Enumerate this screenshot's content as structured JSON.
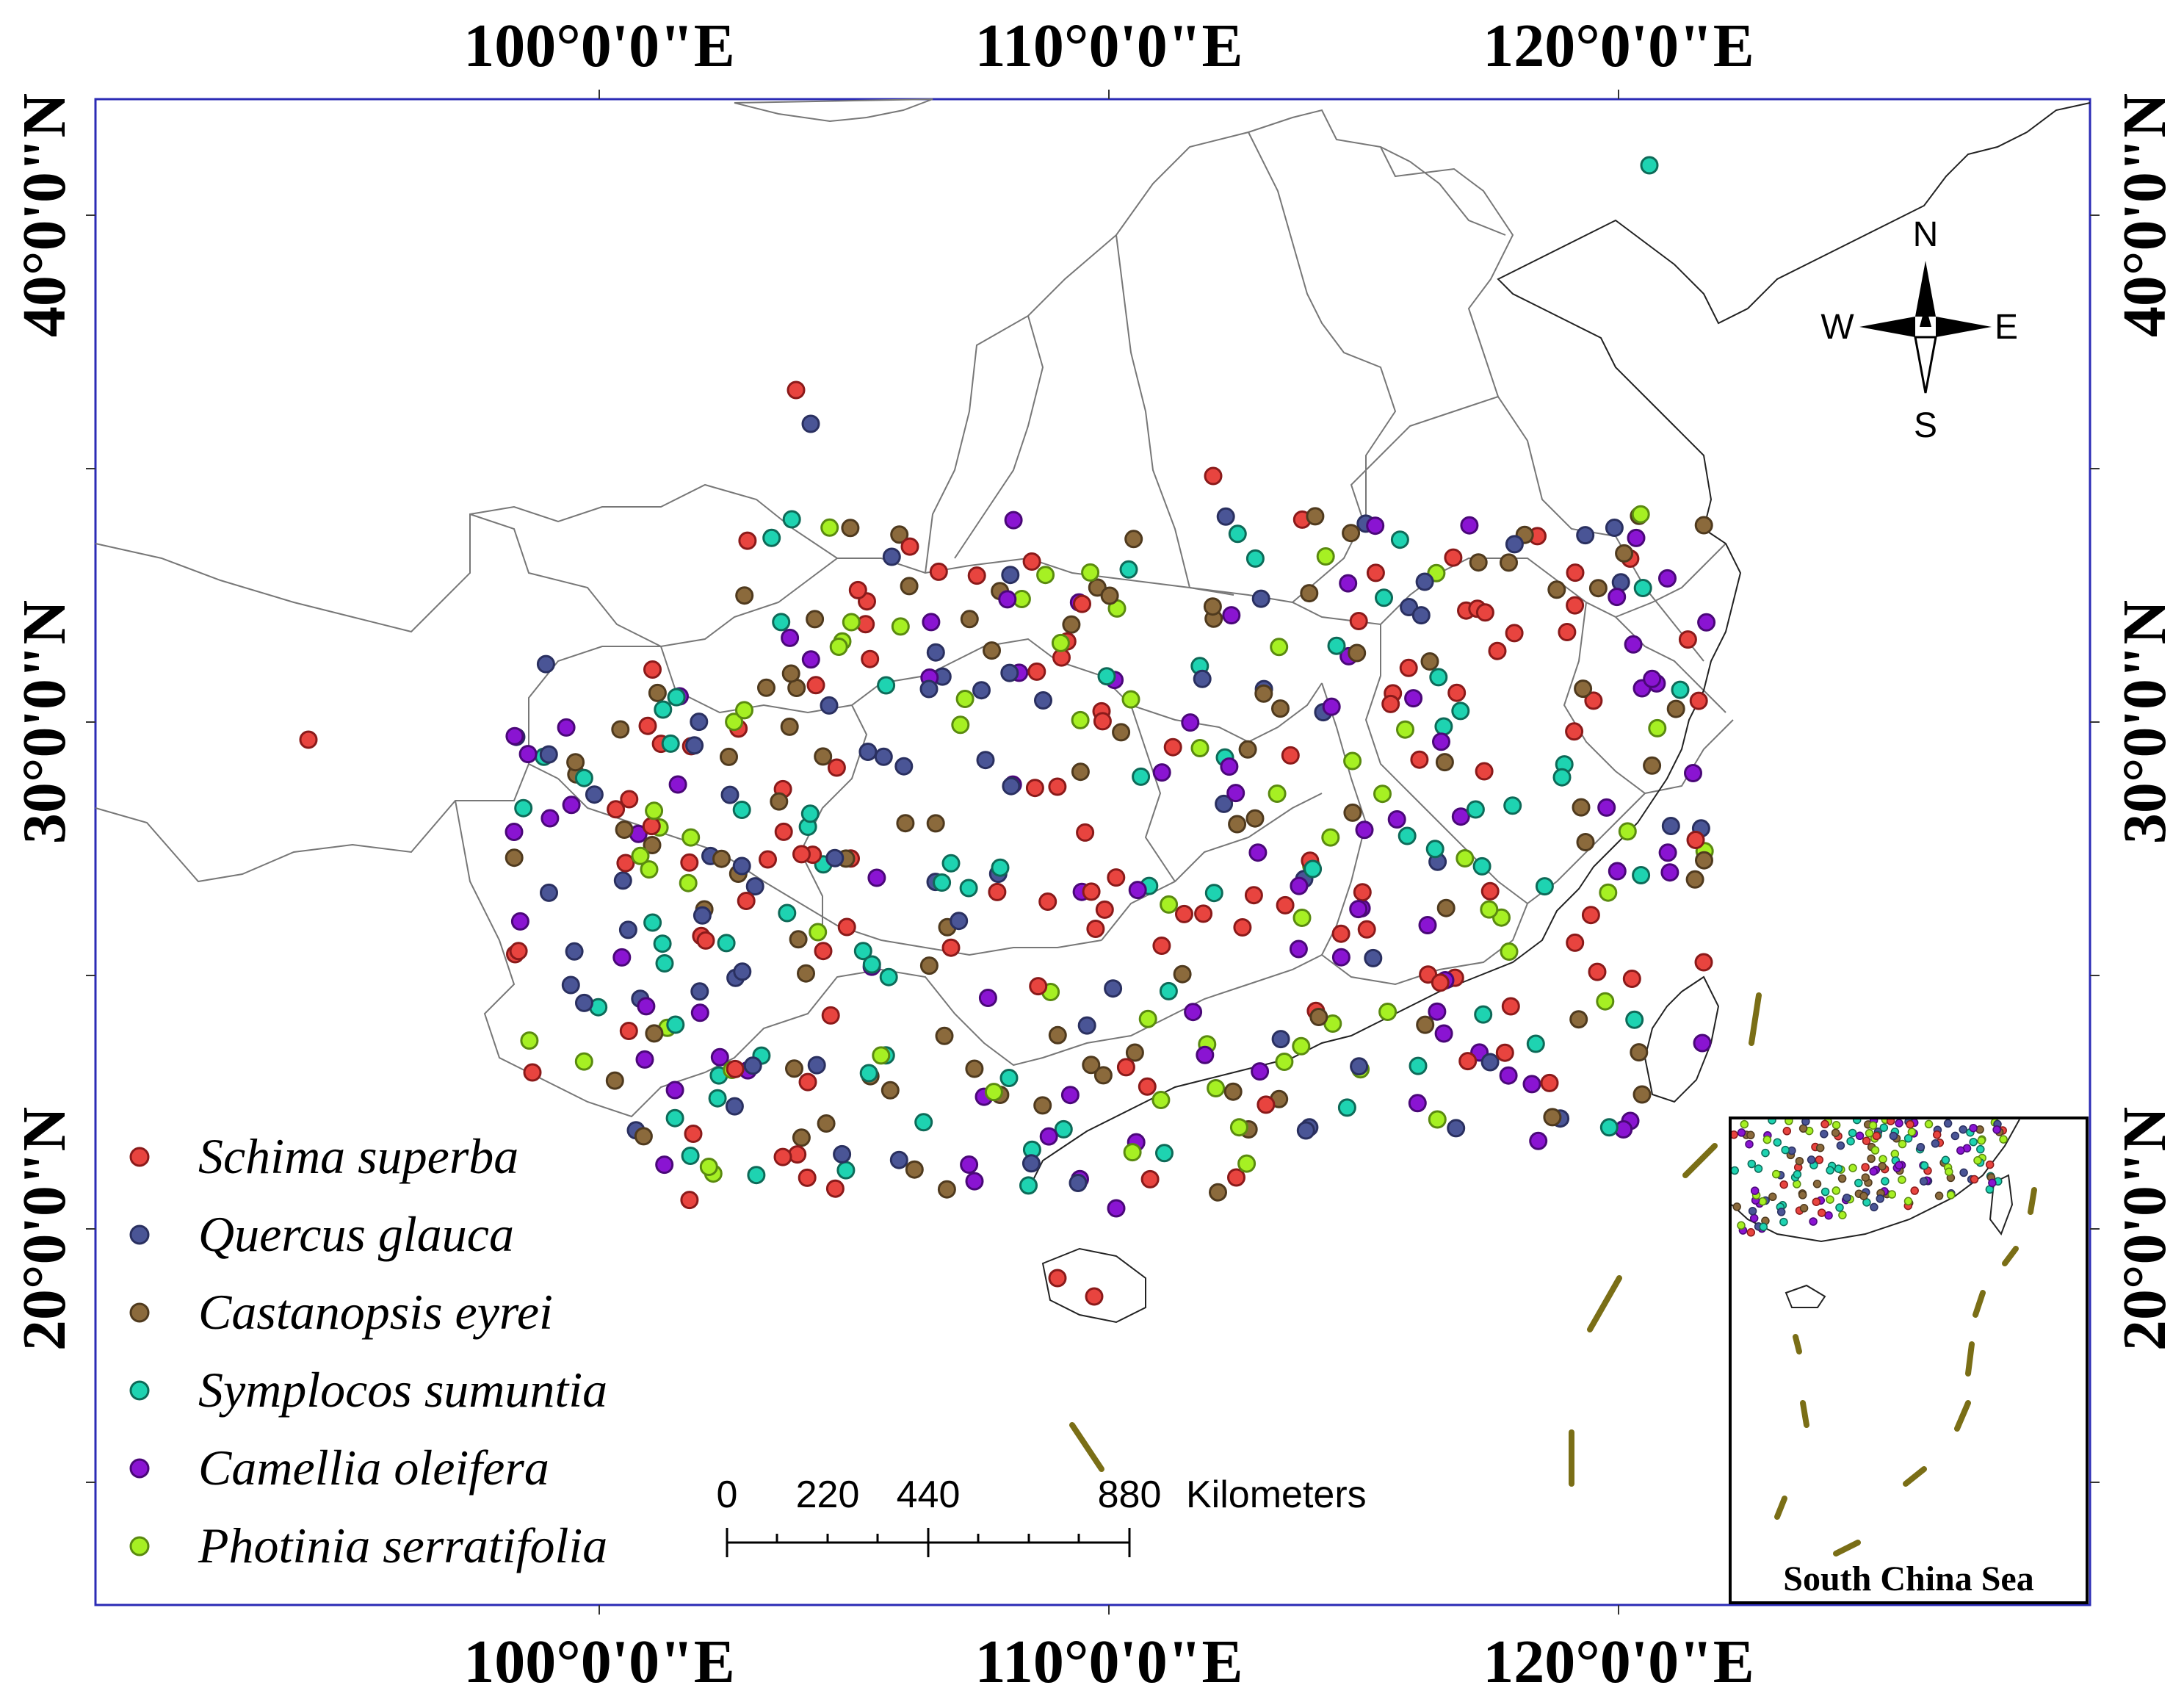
{
  "map": {
    "top_labels": [
      "100°0'0\"E",
      "110°0'0\"E",
      "120°0'0\"E"
    ],
    "bottom_labels": [
      "100°0'0\"E",
      "110°0'0\"E",
      "120°0'0\"E"
    ],
    "left_labels": [
      "40°0'0\"N",
      "30°0'0\"N",
      "20°0'0\"N"
    ],
    "right_labels": [
      "40°0'0\"N",
      "30°0'0\"N",
      "20°0'0\"N"
    ],
    "frame_color": "#2b2bb5"
  },
  "legend": {
    "items": [
      {
        "label": "Schima superba",
        "color": "#e8443f",
        "stroke": "#8a1a1a"
      },
      {
        "label": "Quercus glauca",
        "color": "#4a5596",
        "stroke": "#2a3060"
      },
      {
        "label": "Castanopsis eyrei",
        "color": "#8b6a3c",
        "stroke": "#4f3a1e"
      },
      {
        "label": "Symplocos sumuntia",
        "color": "#1ed3b1",
        "stroke": "#0e6a58"
      },
      {
        "label": "Camellia oleifera",
        "color": "#8a14d2",
        "stroke": "#4a0878"
      },
      {
        "label": "Photinia serratifolia",
        "color": "#a6f023",
        "stroke": "#5a8a10"
      }
    ]
  },
  "scale_bar": {
    "ticks": [
      "0",
      "220",
      "440",
      "880"
    ],
    "unit": "Kilometers"
  },
  "compass": {
    "n": "N",
    "s": "S",
    "e": "E",
    "w": "W"
  },
  "inset": {
    "title": "South China Sea"
  }
}
